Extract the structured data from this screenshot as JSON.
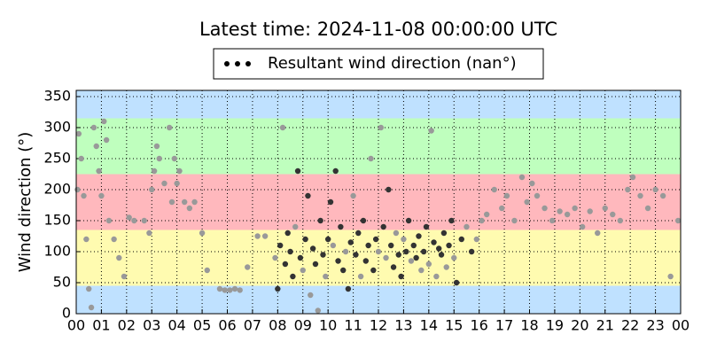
{
  "chart_data": {
    "type": "scatter",
    "title": "Latest time: 2024-11-08 00:00:00 UTC",
    "y_label": "Wind direction (°)",
    "legend": "top",
    "grid": true,
    "bands": [
      {
        "from": 0,
        "to": 45,
        "color": "#bfe1ff"
      },
      {
        "from": 45,
        "to": 135,
        "color": "#fffbb0"
      },
      {
        "from": 135,
        "to": 225,
        "color": "#ffb8bd"
      },
      {
        "from": 225,
        "to": 315,
        "color": "#bfffbe"
      },
      {
        "from": 315,
        "to": 360,
        "color": "#bfe1ff"
      }
    ],
    "xlim": [
      0,
      24
    ],
    "xticks": [
      {
        "value": 0,
        "label": "00"
      },
      {
        "value": 1,
        "label": "01"
      },
      {
        "value": 2,
        "label": "02"
      },
      {
        "value": 3,
        "label": "03"
      },
      {
        "value": 4,
        "label": "04"
      },
      {
        "value": 5,
        "label": "05"
      },
      {
        "value": 6,
        "label": "06"
      },
      {
        "value": 7,
        "label": "07"
      },
      {
        "value": 8,
        "label": "08"
      },
      {
        "value": 9,
        "label": "09"
      },
      {
        "value": 10,
        "label": "10"
      },
      {
        "value": 11,
        "label": "11"
      },
      {
        "value": 12,
        "label": "12"
      },
      {
        "value": 13,
        "label": "13"
      },
      {
        "value": 14,
        "label": "14"
      },
      {
        "value": 15,
        "label": "15"
      },
      {
        "value": 16,
        "label": "16"
      },
      {
        "value": 17,
        "label": "17"
      },
      {
        "value": 18,
        "label": "18"
      },
      {
        "value": 19,
        "label": "19"
      },
      {
        "value": 20,
        "label": "20"
      },
      {
        "value": 21,
        "label": "21"
      },
      {
        "value": 22,
        "label": "22"
      },
      {
        "value": 23,
        "label": "23"
      },
      {
        "value": 24,
        "label": "00"
      }
    ],
    "ylim": [
      0,
      360
    ],
    "yticks": [
      0,
      50,
      100,
      150,
      200,
      250,
      300,
      350
    ],
    "series": [
      {
        "name": "Resultant wind direction (nan°)",
        "color": "#000000",
        "x": [
          0.05,
          0.1,
          0.2,
          0.3,
          0.4,
          0.5,
          0.6,
          0.7,
          0.8,
          0.9,
          1.0,
          1.1,
          1.2,
          1.3,
          1.5,
          1.7,
          1.9,
          2.1,
          2.3,
          2.7,
          2.9,
          3.0,
          3.1,
          3.2,
          3.3,
          3.5,
          3.7,
          3.8,
          3.9,
          4.0,
          4.1,
          4.3,
          4.5,
          4.7,
          5.0,
          5.2,
          5.7,
          5.9,
          6.1,
          6.3,
          6.5,
          6.8,
          7.2,
          7.5,
          7.9,
          8.0,
          8.1,
          8.2,
          8.3,
          8.4,
          8.5,
          8.6,
          8.7,
          8.8,
          8.9,
          9.0,
          9.1,
          9.2,
          9.3,
          9.4,
          9.5,
          9.6,
          9.7,
          9.8,
          9.9,
          10.0,
          10.1,
          10.2,
          10.3,
          10.4,
          10.5,
          10.6,
          10.7,
          10.8,
          10.9,
          11.0,
          11.1,
          11.2,
          11.3,
          11.4,
          11.5,
          11.6,
          11.7,
          11.8,
          11.9,
          12.0,
          12.1,
          12.2,
          12.3,
          12.4,
          12.5,
          12.6,
          12.7,
          12.8,
          12.9,
          13.0,
          13.1,
          13.2,
          13.3,
          13.4,
          13.5,
          13.6,
          13.7,
          13.8,
          13.9,
          14.0,
          14.1,
          14.2,
          14.3,
          14.4,
          14.5,
          14.6,
          14.7,
          14.8,
          14.9,
          15.0,
          15.1,
          15.3,
          15.5,
          15.7,
          15.9,
          16.1,
          16.3,
          16.6,
          16.9,
          17.1,
          17.4,
          17.7,
          17.9,
          18.1,
          18.3,
          18.6,
          18.9,
          19.2,
          19.5,
          19.8,
          20.1,
          20.4,
          20.7,
          21.0,
          21.3,
          21.6,
          21.9,
          22.1,
          22.4,
          22.7,
          23.0,
          23.3,
          23.6,
          23.9
        ],
        "values": [
          200,
          290,
          250,
          190,
          120,
          40,
          10,
          300,
          270,
          230,
          190,
          310,
          280,
          150,
          120,
          90,
          60,
          155,
          150,
          150,
          130,
          200,
          230,
          270,
          250,
          210,
          300,
          180,
          250,
          210,
          230,
          180,
          170,
          180,
          130,
          70,
          40,
          38,
          38,
          40,
          38,
          75,
          125,
          125,
          90,
          40,
          110,
          300,
          80,
          130,
          100,
          60,
          140,
          230,
          90,
          70,
          120,
          190,
          30,
          105,
          80,
          5,
          150,
          95,
          60,
          120,
          180,
          110,
          230,
          85,
          140,
          70,
          100,
          40,
          115,
          190,
          95,
          130,
          60,
          150,
          85,
          110,
          250,
          70,
          120,
          100,
          300,
          140,
          90,
          200,
          110,
          75,
          130,
          95,
          60,
          120,
          100,
          150,
          85,
          110,
          90,
          125,
          70,
          100,
          140,
          80,
          295,
          115,
          60,
          105,
          95,
          130,
          75,
          110,
          150,
          90,
          50,
          120,
          140,
          100,
          120,
          150,
          160,
          200,
          170,
          190,
          150,
          220,
          180,
          210,
          190,
          170,
          150,
          165,
          160,
          170,
          140,
          165,
          130,
          170,
          160,
          150,
          200,
          220,
          190,
          170,
          200,
          190,
          60,
          150
        ],
        "point_colors": [
          "#999999",
          "#999999",
          "#999999",
          "#999999",
          "#999999",
          "#999999",
          "#999999",
          "#999999",
          "#999999",
          "#999999",
          "#999999",
          "#999999",
          "#999999",
          "#999999",
          "#999999",
          "#999999",
          "#999999",
          "#999999",
          "#999999",
          "#999999",
          "#999999",
          "#999999",
          "#999999",
          "#999999",
          "#999999",
          "#999999",
          "#999999",
          "#999999",
          "#999999",
          "#999999",
          "#999999",
          "#999999",
          "#999999",
          "#999999",
          "#999999",
          "#999999",
          "#999999",
          "#999999",
          "#999999",
          "#999999",
          "#999999",
          "#999999",
          "#999999",
          "#999999",
          "#999999",
          "#333333",
          "#333333",
          "#999999",
          "#333333",
          "#333333",
          "#333333",
          "#333333",
          "#999999",
          "#333333",
          "#333333",
          "#999999",
          "#333333",
          "#333333",
          "#999999",
          "#333333",
          "#333333",
          "#999999",
          "#333333",
          "#333333",
          "#999999",
          "#333333",
          "#333333",
          "#999999",
          "#333333",
          "#333333",
          "#333333",
          "#333333",
          "#999999",
          "#333333",
          "#333333",
          "#999999",
          "#333333",
          "#333333",
          "#999999",
          "#333333",
          "#333333",
          "#333333",
          "#999999",
          "#333333",
          "#333333",
          "#999999",
          "#999999",
          "#333333",
          "#999999",
          "#333333",
          "#333333",
          "#333333",
          "#999999",
          "#333333",
          "#333333",
          "#999999",
          "#333333",
          "#333333",
          "#999999",
          "#333333",
          "#333333",
          "#333333",
          "#999999",
          "#333333",
          "#333333",
          "#999999",
          "#999999",
          "#333333",
          "#999999",
          "#333333",
          "#333333",
          "#333333",
          "#999999",
          "#333333",
          "#333333",
          "#999999",
          "#333333",
          "#333333",
          "#999999",
          "#333333",
          "#999999",
          "#999999",
          "#999999",
          "#999999",
          "#999999",
          "#999999",
          "#999999",
          "#999999",
          "#999999",
          "#999999",
          "#999999",
          "#999999",
          "#999999",
          "#999999",
          "#999999",
          "#999999",
          "#999999",
          "#999999",
          "#999999",
          "#999999",
          "#999999",
          "#999999",
          "#999999",
          "#999999",
          "#999999",
          "#999999",
          "#999999",
          "#999999",
          "#999999",
          "#999999"
        ]
      }
    ]
  }
}
